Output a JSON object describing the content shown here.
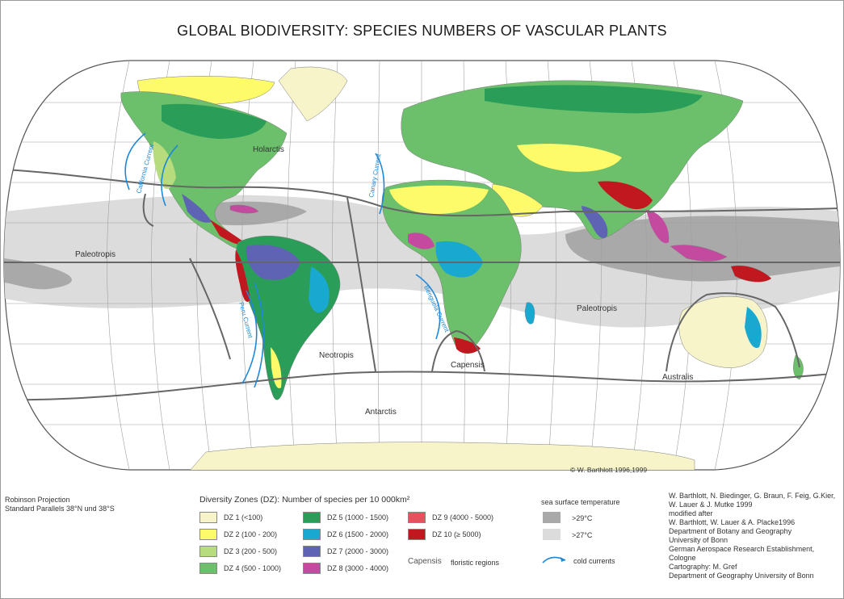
{
  "title": "GLOBAL BIODIVERSITY:  SPECIES NUMBERS OF VASCULAR PLANTS",
  "projection": [
    "Robinson Projection",
    "Standard Parallels 38°N und 38°S"
  ],
  "legend": {
    "title": "Diversity Zones (DZ): Number of species per 10 000km²",
    "zones": [
      {
        "label": "DZ  1      (<100)",
        "color": "#f6f4c8"
      },
      {
        "label": "DZ  2   (100 -   200)",
        "color": "#fdfb6a"
      },
      {
        "label": "DZ  3   (200 -   500)",
        "color": "#b7dc7e"
      },
      {
        "label": "DZ  4   (500 - 1000)",
        "color": "#6cc06c"
      },
      {
        "label": "DZ  5 (1000 - 1500)",
        "color": "#2a9e58"
      },
      {
        "label": "DZ  6 (1500 - 2000)",
        "color": "#19a8d0"
      },
      {
        "label": "DZ  7 (2000 - 3000)",
        "color": "#5f63b3"
      },
      {
        "label": "DZ  8 (3000 - 4000)",
        "color": "#c44aa0"
      },
      {
        "label": "DZ  9 (4000 - 5000)",
        "color": "#e8505e"
      },
      {
        "label": "DZ 10  (≥ 5000)",
        "color": "#c0181e"
      }
    ],
    "floristic_example": "Capensis",
    "floristic_label": "floristic regions",
    "sst_title": "sea surface temperature",
    "sst": [
      {
        "label": ">29°C",
        "color": "#a9a9a9"
      },
      {
        "label": ">27°C",
        "color": "#dcdcdc"
      }
    ],
    "currents_label": "cold currents"
  },
  "credits": [
    "W. Barthlott, N. Biedinger, G. Braun, F. Feig, G.Kier,",
    "W. Lauer & J. Mutke 1999",
    "modified after",
    "W. Barthlott, W. Lauer & A. Placke1996",
    "Department of Botany and Geography",
    "University of Bonn",
    "German Aerospace Research Establishment, Cologne",
    "Cartography: M. Gref",
    "Department of Geography University of Bonn"
  ],
  "copyright": "© W. Barthlott 1996,1999",
  "regions": {
    "holarctis": "Holarctis",
    "paleotropis_west": "Paleotropis",
    "paleotropis_east": "Paleotropis",
    "neotropis": "Neotropis",
    "capensis": "Capensis",
    "australis": "Australis",
    "antarctis": "Antarctis"
  },
  "currents": {
    "california": "California Current",
    "canary": "Canary Current",
    "peru": "Peru Current",
    "benguela": "Benguela Current"
  },
  "colors": {
    "ocean": "#ffffff",
    "graticule": "#a0a0a0",
    "boundary": "#666666",
    "current": "#1e88d8"
  }
}
